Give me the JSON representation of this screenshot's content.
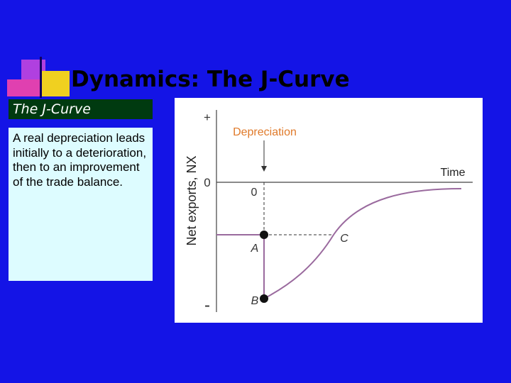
{
  "header": {
    "title": "Dynamics: The J-Curve"
  },
  "sidebar": {
    "heading": "The J-Curve",
    "text": "A real depreciation leads initially to a deterioration, then to an improvement of the trade balance."
  },
  "figure": {
    "y_axis_label": "Net exports, NX",
    "plus": "+",
    "zero": "0",
    "minus": "-",
    "x_axis_label": "Time",
    "event": "Depreciation",
    "event_time": "0",
    "point_a": "A",
    "point_b": "B",
    "point_c": "C"
  }
}
